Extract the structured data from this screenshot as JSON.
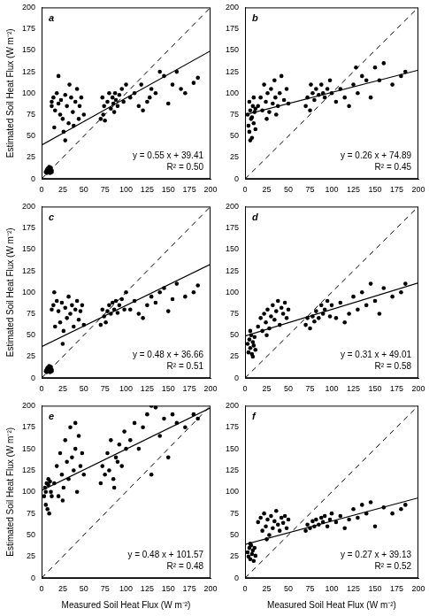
{
  "chart_data": [
    {
      "type": "scatter",
      "title": "a",
      "y_label": "Estimated Soil Heat Flux (W m⁻²)",
      "x": [
        5,
        6,
        7,
        8,
        9,
        10,
        11,
        12,
        6,
        8,
        10,
        12,
        9,
        7,
        12,
        14,
        15,
        16,
        18,
        20,
        22,
        23,
        25,
        26,
        28,
        30,
        32,
        33,
        35,
        37,
        38,
        40,
        42,
        44,
        45,
        47,
        50,
        12,
        28,
        20,
        70,
        72,
        74,
        75,
        78,
        80,
        82,
        84,
        85,
        87,
        88,
        90,
        92,
        95,
        97,
        100,
        73,
        86,
        105,
        110,
        115,
        120,
        125,
        130,
        135,
        140,
        145,
        150,
        155,
        160,
        170,
        180,
        185,
        118,
        128,
        165
      ],
      "values": [
        8,
        10,
        12,
        9,
        11,
        7,
        13,
        10,
        7,
        12,
        10,
        8,
        14,
        9,
        90,
        95,
        60,
        80,
        100,
        88,
        75,
        92,
        70,
        55,
        98,
        85,
        65,
        110,
        95,
        78,
        62,
        90,
        105,
        70,
        85,
        95,
        75,
        85,
        45,
        120,
        70,
        95,
        85,
        68,
        90,
        100,
        82,
        95,
        88,
        100,
        92,
        85,
        98,
        105,
        90,
        110,
        75,
        78,
        95,
        100,
        85,
        80,
        90,
        105,
        100,
        125,
        120,
        88,
        110,
        125,
        100,
        112,
        118,
        110,
        95,
        105
      ],
      "color": "#000000",
      "marker": "circle",
      "xlim": [
        0,
        200
      ],
      "ylim": [
        0,
        200
      ],
      "xticks": [
        0,
        25,
        50,
        75,
        100,
        125,
        150,
        175,
        200
      ],
      "yticks": [
        0,
        25,
        50,
        75,
        100,
        125,
        150,
        175,
        200
      ],
      "grid": false,
      "fit": {
        "slope": 0.55,
        "intercept": 39.41,
        "line_style": "solid"
      },
      "reference_line": {
        "x": [
          0,
          200
        ],
        "values": [
          0,
          200
        ],
        "line_style": "dashed"
      },
      "annotations": [
        "y = 0.55 x + 39.41",
        "R² = 0.50"
      ]
    },
    {
      "type": "scatter",
      "title": "b",
      "x": [
        3,
        4,
        5,
        6,
        7,
        8,
        9,
        10,
        11,
        12,
        5,
        8,
        10,
        6,
        12,
        15,
        18,
        20,
        22,
        24,
        26,
        28,
        30,
        32,
        34,
        35,
        38,
        40,
        42,
        45,
        48,
        50,
        25,
        36,
        70,
        72,
        75,
        78,
        80,
        82,
        85,
        88,
        90,
        92,
        95,
        98,
        100,
        76,
        105,
        110,
        115,
        120,
        125,
        130,
        135,
        140,
        145,
        150,
        155,
        160,
        170,
        180,
        185,
        128
      ],
      "values": [
        75,
        62,
        55,
        80,
        70,
        48,
        85,
        65,
        78,
        58,
        90,
        72,
        95,
        45,
        82,
        85,
        95,
        80,
        110,
        90,
        100,
        78,
        105,
        88,
        115,
        95,
        85,
        100,
        120,
        92,
        105,
        88,
        70,
        75,
        85,
        95,
        80,
        100,
        92,
        105,
        98,
        110,
        100,
        95,
        105,
        115,
        100,
        110,
        90,
        105,
        95,
        85,
        110,
        100,
        120,
        115,
        95,
        130,
        115,
        135,
        110,
        120,
        125,
        130
      ],
      "color": "#000000",
      "marker": "circle",
      "xlim": [
        0,
        200
      ],
      "ylim": [
        0,
        200
      ],
      "xticks": [
        0,
        25,
        50,
        75,
        100,
        125,
        150,
        175,
        200
      ],
      "yticks": [
        0,
        25,
        50,
        75,
        100,
        125,
        150,
        175,
        200
      ],
      "grid": false,
      "fit": {
        "slope": 0.26,
        "intercept": 74.89,
        "line_style": "solid"
      },
      "reference_line": {
        "x": [
          0,
          200
        ],
        "values": [
          0,
          200
        ],
        "line_style": "dashed"
      },
      "annotations": [
        "y = 0.26 x + 74.89",
        "R² = 0.45"
      ]
    },
    {
      "type": "scatter",
      "title": "c",
      "y_label": "Estimated Soil Heat Flux (W m⁻²)",
      "x": [
        5,
        6,
        7,
        8,
        9,
        10,
        11,
        12,
        6,
        8,
        10,
        12,
        9,
        7,
        12,
        14,
        16,
        18,
        20,
        22,
        24,
        26,
        28,
        30,
        32,
        34,
        36,
        38,
        40,
        42,
        44,
        46,
        48,
        50,
        25,
        15,
        70,
        72,
        74,
        76,
        78,
        80,
        82,
        84,
        86,
        88,
        90,
        92,
        95,
        98,
        100,
        105,
        110,
        115,
        120,
        125,
        130,
        135,
        140,
        145,
        150,
        160,
        170,
        180,
        185,
        155
      ],
      "values": [
        8,
        10,
        12,
        9,
        11,
        7,
        13,
        10,
        7,
        12,
        10,
        8,
        14,
        9,
        80,
        85,
        60,
        90,
        78,
        65,
        88,
        55,
        82,
        70,
        95,
        75,
        85,
        60,
        80,
        90,
        68,
        78,
        85,
        62,
        40,
        100,
        62,
        80,
        72,
        65,
        78,
        85,
        75,
        88,
        80,
        90,
        76,
        85,
        92,
        80,
        100,
        80,
        90,
        75,
        70,
        85,
        95,
        88,
        100,
        105,
        78,
        110,
        95,
        100,
        108,
        92
      ],
      "color": "#000000",
      "marker": "circle",
      "xlim": [
        0,
        200
      ],
      "ylim": [
        0,
        200
      ],
      "xticks": [
        0,
        25,
        50,
        75,
        100,
        125,
        150,
        175,
        200
      ],
      "yticks": [
        0,
        25,
        50,
        75,
        100,
        125,
        150,
        175,
        200
      ],
      "grid": false,
      "fit": {
        "slope": 0.48,
        "intercept": 36.66,
        "line_style": "solid"
      },
      "reference_line": {
        "x": [
          0,
          200
        ],
        "values": [
          0,
          200
        ],
        "line_style": "dashed"
      },
      "annotations": [
        "y = 0.48 x + 36.66",
        "R² = 0.51"
      ]
    },
    {
      "type": "scatter",
      "title": "d",
      "x": [
        3,
        4,
        5,
        6,
        7,
        8,
        9,
        10,
        11,
        12,
        6,
        9,
        15,
        18,
        20,
        22,
        24,
        26,
        28,
        30,
        32,
        34,
        36,
        38,
        40,
        42,
        44,
        46,
        48,
        50,
        25,
        70,
        72,
        75,
        78,
        80,
        82,
        85,
        88,
        90,
        92,
        95,
        98,
        100,
        105,
        110,
        115,
        120,
        125,
        130,
        135,
        140,
        145,
        150,
        160,
        170,
        180,
        185,
        155
      ],
      "values": [
        40,
        30,
        45,
        35,
        50,
        28,
        42,
        38,
        48,
        33,
        55,
        25,
        60,
        70,
        55,
        75,
        65,
        80,
        58,
        72,
        85,
        68,
        78,
        90,
        62,
        82,
        75,
        88,
        70,
        80,
        50,
        62,
        70,
        58,
        72,
        66,
        78,
        70,
        85,
        75,
        80,
        90,
        72,
        85,
        70,
        88,
        65,
        75,
        95,
        80,
        100,
        85,
        110,
        90,
        105,
        95,
        100,
        110,
        75
      ],
      "color": "#000000",
      "marker": "circle",
      "xlim": [
        0,
        200
      ],
      "ylim": [
        0,
        200
      ],
      "xticks": [
        0,
        25,
        50,
        75,
        100,
        125,
        150,
        175,
        200
      ],
      "yticks": [
        0,
        25,
        50,
        75,
        100,
        125,
        150,
        175,
        200
      ],
      "grid": false,
      "fit": {
        "slope": 0.31,
        "intercept": 49.01,
        "line_style": "solid"
      },
      "reference_line": {
        "x": [
          0,
          200
        ],
        "values": [
          0,
          200
        ],
        "line_style": "dashed"
      },
      "annotations": [
        "y = 0.31 x + 49.01",
        "R² = 0.58"
      ]
    },
    {
      "type": "scatter",
      "title": "e",
      "y_label": "Estimated Soil Heat Flux (W m⁻²)",
      "x_label": "Measured Soil Heat Flux (W m⁻²)",
      "x": [
        3,
        4,
        5,
        6,
        7,
        8,
        9,
        10,
        11,
        12,
        5,
        8,
        15,
        18,
        20,
        22,
        24,
        26,
        28,
        30,
        32,
        34,
        36,
        38,
        40,
        42,
        44,
        46,
        48,
        50,
        25,
        40,
        70,
        72,
        75,
        78,
        80,
        82,
        85,
        88,
        90,
        92,
        95,
        98,
        100,
        86,
        105,
        110,
        115,
        120,
        125,
        130,
        135,
        140,
        145,
        150,
        155,
        160,
        170,
        180,
        185,
        130
      ],
      "values": [
        95,
        105,
        100,
        110,
        80,
        108,
        75,
        112,
        100,
        95,
        85,
        115,
        110,
        130,
        95,
        145,
        120,
        105,
        160,
        135,
        115,
        175,
        140,
        125,
        150,
        100,
        165,
        130,
        145,
        120,
        90,
        180,
        110,
        130,
        120,
        145,
        125,
        160,
        115,
        140,
        135,
        155,
        130,
        170,
        150,
        105,
        160,
        180,
        150,
        175,
        190,
        200,
        198,
        165,
        185,
        140,
        190,
        180,
        175,
        190,
        185,
        120
      ],
      "color": "#000000",
      "marker": "circle",
      "xlim": [
        0,
        200
      ],
      "ylim": [
        0,
        200
      ],
      "xticks": [
        0,
        25,
        50,
        75,
        100,
        125,
        150,
        175,
        200
      ],
      "yticks": [
        0,
        25,
        50,
        75,
        100,
        125,
        150,
        175,
        200
      ],
      "grid": false,
      "fit": {
        "slope": 0.48,
        "intercept": 101.57,
        "line_style": "solid"
      },
      "reference_line": {
        "x": [
          0,
          200
        ],
        "values": [
          0,
          200
        ],
        "line_style": "dashed"
      },
      "annotations": [
        "y = 0.48 x + 101.57",
        "R² = 0.48"
      ]
    },
    {
      "type": "scatter",
      "title": "f",
      "x_label": "Measured Soil Heat Flux (W m⁻²)",
      "x": [
        3,
        4,
        5,
        6,
        7,
        8,
        9,
        10,
        11,
        12,
        6,
        15,
        18,
        20,
        22,
        24,
        26,
        28,
        30,
        32,
        34,
        36,
        38,
        40,
        42,
        44,
        46,
        48,
        50,
        25,
        70,
        72,
        75,
        78,
        80,
        82,
        85,
        88,
        90,
        92,
        95,
        98,
        100,
        105,
        110,
        115,
        120,
        125,
        130,
        135,
        140,
        145,
        150,
        160,
        170,
        180,
        185
      ],
      "values": [
        30,
        25,
        35,
        22,
        38,
        28,
        32,
        20,
        35,
        26,
        40,
        65,
        70,
        55,
        75,
        60,
        68,
        50,
        72,
        58,
        66,
        78,
        62,
        55,
        70,
        64,
        72,
        58,
        68,
        45,
        55,
        62,
        58,
        66,
        60,
        68,
        62,
        70,
        65,
        72,
        60,
        68,
        75,
        65,
        72,
        58,
        68,
        80,
        70,
        85,
        75,
        88,
        60,
        82,
        75,
        80,
        85
      ],
      "color": "#000000",
      "marker": "circle",
      "xlim": [
        0,
        200
      ],
      "ylim": [
        0,
        200
      ],
      "xticks": [
        0,
        25,
        50,
        75,
        100,
        125,
        150,
        175,
        200
      ],
      "yticks": [
        0,
        25,
        50,
        75,
        100,
        125,
        150,
        175,
        200
      ],
      "grid": false,
      "fit": {
        "slope": 0.27,
        "intercept": 39.13,
        "line_style": "solid"
      },
      "reference_line": {
        "x": [
          0,
          200
        ],
        "values": [
          0,
          200
        ],
        "line_style": "dashed"
      },
      "annotations": [
        "y = 0.27 x + 39.13",
        "R² = 0.52"
      ]
    }
  ]
}
